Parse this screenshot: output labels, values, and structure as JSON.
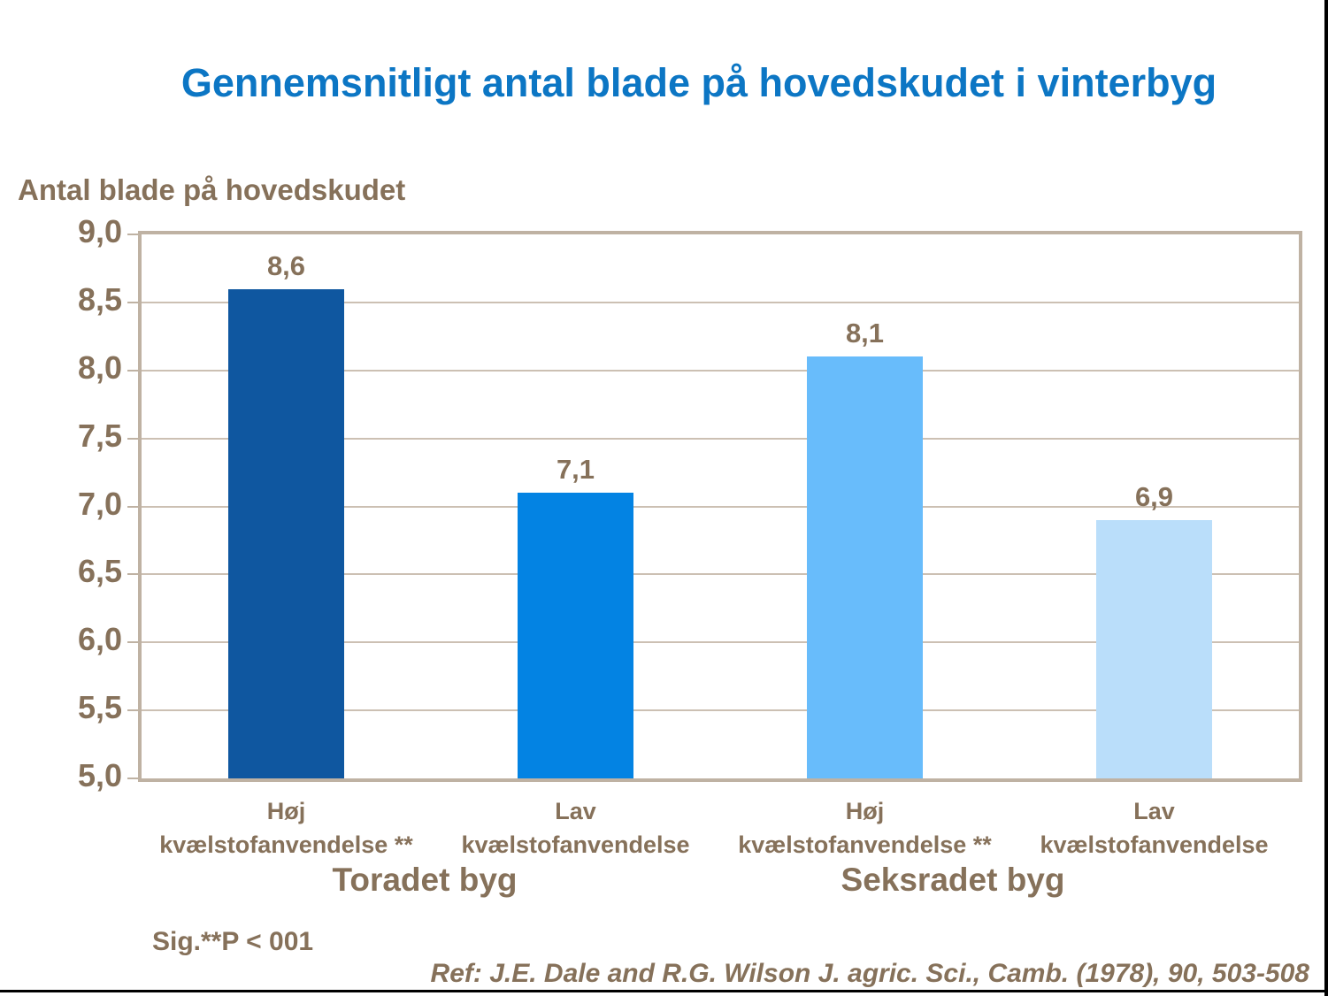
{
  "slide": {
    "sig_note": "Sig.**P < 001",
    "reference": "Ref: J.E. Dale and R.G. Wilson J. agric. Sci., Camb. (1978), 90, 503-508"
  },
  "colors": {
    "title_blue": "#0C76C4",
    "text_brown": "#86715A",
    "gridline": "#CCC0B3",
    "plot_border": "#BFB2A3",
    "frame_black": "#000000",
    "background": "#FFFFFF"
  },
  "chart_data": {
    "type": "bar",
    "title": "Gennemsnitligt antal blade på hovedskudet i vinterbyg",
    "ylabel": "Antal blade på hovedskudet",
    "xlabel": "",
    "ylim": [
      5.0,
      9.0
    ],
    "ytick_interval": 0.5,
    "ytick_labels": [
      "9,0",
      "8,5",
      "8,0",
      "7,5",
      "7,0",
      "6,5",
      "6,0",
      "5,5",
      "5,0"
    ],
    "grid": true,
    "legend": false,
    "categories": [
      "Høj kvælstofanvendelse **",
      "Lav kvælstofanvendelse",
      "Høj kvælstofanvendelse **",
      "Lav kvælstofanvendelse"
    ],
    "category_lines": [
      [
        "Høj",
        "kvælstofanvendelse **"
      ],
      [
        "Lav",
        "kvælstofanvendelse"
      ],
      [
        "Høj",
        "kvælstofanvendelse **"
      ],
      [
        "Lav",
        "kvælstofanvendelse"
      ]
    ],
    "values": [
      8.6,
      7.1,
      8.1,
      6.9
    ],
    "value_labels": [
      "8,6",
      "7,1",
      "8,1",
      "6,9"
    ],
    "bar_colors": [
      "#0F57A0",
      "#0383E3",
      "#68BCFB",
      "#BADEFA"
    ],
    "group_labels": [
      "Toradet byg",
      "Seksradet byg"
    ],
    "annotations": [
      "Sig.**P < 001",
      "Ref: J.E. Dale and R.G. Wilson J. agric. Sci., Camb. (1978), 90, 503-508"
    ]
  }
}
